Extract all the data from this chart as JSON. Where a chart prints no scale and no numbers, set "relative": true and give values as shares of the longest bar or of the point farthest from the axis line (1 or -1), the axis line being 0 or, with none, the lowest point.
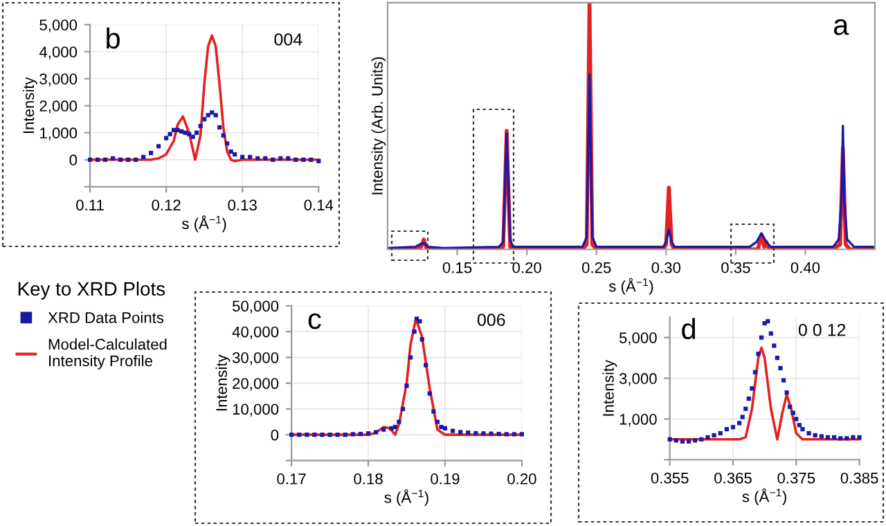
{
  "chart_data": [
    {
      "type": "line",
      "relative": true,
      "ylabel": "Intensity (Arb. Units)",
      "xlabel": "s (Å$^{−1}$)",
      "annotations": [
        "a"
      ],
      "xlim": [
        0.1,
        0.45
      ],
      "xticks": [
        0.15,
        {
          "value": 0.2,
          "label": "0.20"
        },
        0.25,
        {
          "value": 0.3,
          "label": "0.30"
        },
        0.35,
        {
          "value": 0.4,
          "label": "0.40"
        }
      ],
      "grid": false,
      "series": [
        {
          "color": "#1a1aa6",
          "x": [
            0.1,
            0.12,
            0.123,
            0.126,
            0.129,
            0.14,
            0.18,
            0.183,
            0.1855,
            0.188,
            0.19,
            0.24,
            0.243,
            0.245,
            0.247,
            0.25,
            0.298,
            0.3,
            0.302,
            0.304,
            0.306,
            0.36,
            0.365,
            0.3685,
            0.372,
            0.375,
            0.42,
            0.424,
            0.426,
            0.427,
            0.428,
            0.43,
            0.435,
            0.45
          ],
          "values": [
            0.005,
            0.01,
            0.02,
            0.025,
            0.01,
            0.005,
            0.01,
            0.03,
            0.47,
            0.04,
            0.01,
            0.01,
            0.05,
            0.71,
            0.05,
            0.01,
            0.01,
            0.03,
            0.08,
            0.03,
            0.01,
            0.01,
            0.03,
            0.065,
            0.03,
            0.01,
            0.01,
            0.04,
            0.2,
            0.5,
            0.2,
            0.04,
            0.01,
            0.01
          ]
        },
        {
          "color": "#e62020",
          "x": [
            0.1,
            0.12,
            0.124,
            0.126,
            0.128,
            0.13,
            0.18,
            0.183,
            0.1855,
            0.188,
            0.19,
            0.24,
            0.243,
            0.245,
            0.247,
            0.25,
            0.298,
            0.3,
            0.302,
            0.304,
            0.306,
            0.366,
            0.3685,
            0.3705,
            0.372,
            0.374,
            0.42,
            0.425,
            0.427,
            0.429,
            0.432,
            0.45
          ],
          "values": [
            0,
            0,
            0.01,
            0.04,
            0.005,
            0,
            0,
            0.01,
            0.48,
            0.01,
            0,
            0,
            0.02,
            1.0,
            0.02,
            0,
            0,
            0.02,
            0.25,
            0.02,
            0,
            0,
            0.06,
            0.01,
            0.03,
            0,
            0,
            0.02,
            0.41,
            0.02,
            0,
            0
          ]
        }
      ]
    },
    {
      "type": "line",
      "ylabel": "Intensity",
      "xlabel": "s (Å$^{−1}$)",
      "annotations": [
        "b",
        "004"
      ],
      "xlim": [
        0.11,
        0.14
      ],
      "xticks": [
        0.11,
        0.12,
        0.13,
        0.14
      ],
      "ylim": [
        -1000,
        5000
      ],
      "yticks": [
        {
          "value": -1000,
          "label": null
        },
        0,
        {
          "value": 1000,
          "label": "1,000"
        },
        {
          "value": 2000,
          "label": "2,000"
        },
        {
          "value": 3000,
          "label": "3,000"
        },
        {
          "value": 4000,
          "label": "4,000"
        },
        {
          "value": 5000,
          "label": "5,000"
        }
      ],
      "grid": true,
      "legend": "bottom left",
      "legend_title": "Key to XRD Plots",
      "series": [
        {
          "type": "scatter",
          "name": "XRD Data Points",
          "color": "#1a1aa6",
          "marker": "square",
          "x": [
            0.11,
            0.111,
            0.112,
            0.113,
            0.114,
            0.115,
            0.116,
            0.117,
            0.118,
            0.119,
            0.12,
            0.1205,
            0.121,
            0.1215,
            0.122,
            0.1225,
            0.123,
            0.1235,
            0.124,
            0.1245,
            0.125,
            0.1255,
            0.126,
            0.1265,
            0.127,
            0.1275,
            0.128,
            0.1285,
            0.129,
            0.13,
            0.131,
            0.132,
            0.133,
            0.134,
            0.135,
            0.136,
            0.137,
            0.138,
            0.139,
            0.14
          ],
          "values": [
            0,
            0,
            0,
            50,
            0,
            0,
            0,
            100,
            250,
            500,
            800,
            950,
            1100,
            1100,
            1050,
            1000,
            950,
            850,
            1000,
            1250,
            1500,
            1650,
            1750,
            1650,
            1200,
            900,
            600,
            300,
            200,
            100,
            100,
            50,
            50,
            0,
            50,
            50,
            0,
            0,
            0,
            -50
          ]
        },
        {
          "name": "Model-Calculated\nIntensity Profile",
          "color": "#e62020",
          "x": [
            0.11,
            0.118,
            0.119,
            0.12,
            0.121,
            0.1215,
            0.1222,
            0.123,
            0.1238,
            0.1245,
            0.125,
            0.1255,
            0.126,
            0.1265,
            0.127,
            0.1275,
            0.128,
            0.1285,
            0.129,
            0.13,
            0.14
          ],
          "values": [
            0,
            0,
            50,
            200,
            700,
            1300,
            1600,
            1000,
            0,
            900,
            2800,
            4200,
            4600,
            4200,
            2800,
            1200,
            300,
            0,
            -50,
            0,
            0
          ]
        }
      ]
    },
    {
      "type": "line",
      "ylabel": "Intensity",
      "xlabel": "s (Å$^{−1}$)",
      "annotations": [
        "c",
        "006"
      ],
      "xlim": [
        0.17,
        0.2
      ],
      "xticks": [
        0.17,
        0.18,
        0.19,
        {
          "value": 0.2,
          "label": "0.20"
        }
      ],
      "ylim": [
        -10000,
        50000
      ],
      "yticks": [
        {
          "value": -10000,
          "label": null
        },
        0,
        {
          "value": 10000,
          "label": "10,000"
        },
        {
          "value": 20000,
          "label": "20,000"
        },
        {
          "value": 30000,
          "label": "30,000"
        },
        {
          "value": 40000,
          "label": "40,000"
        },
        {
          "value": 50000,
          "label": "50,000"
        }
      ],
      "grid": true,
      "series": [
        {
          "type": "scatter",
          "color": "#1a1aa6",
          "marker": "square",
          "x": [
            0.17,
            0.171,
            0.172,
            0.173,
            0.174,
            0.175,
            0.176,
            0.177,
            0.178,
            0.179,
            0.18,
            0.181,
            0.182,
            0.183,
            0.1835,
            0.184,
            0.1845,
            0.185,
            0.1855,
            0.186,
            0.1863,
            0.1867,
            0.187,
            0.1875,
            0.188,
            0.1885,
            0.189,
            0.1895,
            0.19,
            0.191,
            0.192,
            0.193,
            0.194,
            0.195,
            0.196,
            0.197,
            0.198,
            0.199,
            0.2
          ],
          "values": [
            0,
            0,
            0,
            0,
            0,
            0,
            0,
            0,
            200,
            300,
            500,
            1000,
            2000,
            2500,
            3000,
            5000,
            10000,
            19000,
            30000,
            40000,
            45000,
            44000,
            37000,
            27000,
            16000,
            9000,
            5000,
            3000,
            2500,
            1500,
            1000,
            800,
            600,
            500,
            400,
            300,
            200,
            200,
            200
          ]
        },
        {
          "color": "#e62020",
          "x": [
            0.17,
            0.18,
            0.181,
            0.182,
            0.1828,
            0.1835,
            0.184,
            0.185,
            0.1855,
            0.1862,
            0.187,
            0.188,
            0.189,
            0.19,
            0.2
          ],
          "values": [
            0,
            0,
            800,
            3000,
            2500,
            0,
            4000,
            20000,
            35000,
            45000,
            38000,
            18000,
            2000,
            0,
            0
          ]
        }
      ]
    },
    {
      "type": "line",
      "ylabel": "Intensity",
      "xlabel": "s (Å$^{−1}$)",
      "annotations": [
        "d",
        "0 0 12"
      ],
      "xlim": [
        0.355,
        0.385
      ],
      "xticks": [
        0.355,
        0.365,
        0.375,
        0.385
      ],
      "ylim": [
        -1000,
        6000
      ],
      "yticks": [
        {
          "value": -1000,
          "label": null
        },
        {
          "value": 1000,
          "label": "1,000"
        },
        {
          "value": 3000,
          "label": "3,000"
        },
        {
          "value": 5000,
          "label": "5,000"
        }
      ],
      "grid": true,
      "series": [
        {
          "type": "scatter",
          "color": "#1a1aa6",
          "marker": "square",
          "x": [
            0.355,
            0.356,
            0.357,
            0.358,
            0.359,
            0.36,
            0.361,
            0.362,
            0.363,
            0.364,
            0.365,
            0.366,
            0.3665,
            0.367,
            0.3675,
            0.368,
            0.3685,
            0.369,
            0.3695,
            0.37,
            0.3705,
            0.371,
            0.3715,
            0.372,
            0.3725,
            0.373,
            0.3735,
            0.374,
            0.3745,
            0.375,
            0.3755,
            0.376,
            0.377,
            0.378,
            0.379,
            0.38,
            0.381,
            0.382,
            0.383,
            0.384,
            0.385
          ],
          "values": [
            0,
            -50,
            -100,
            -100,
            -50,
            0,
            100,
            200,
            300,
            500,
            600,
            800,
            1100,
            1500,
            2000,
            2500,
            3300,
            4200,
            5000,
            5700,
            5800,
            5200,
            4600,
            4000,
            3500,
            2900,
            2300,
            1600,
            1300,
            1000,
            700,
            500,
            300,
            200,
            150,
            100,
            100,
            50,
            50,
            100,
            100
          ]
        },
        {
          "color": "#e62020",
          "x": [
            0.355,
            0.358,
            0.362,
            0.366,
            0.367,
            0.368,
            0.369,
            0.3695,
            0.37,
            0.371,
            0.372,
            0.3728,
            0.3735,
            0.3742,
            0.375,
            0.376,
            0.385
          ],
          "values": [
            0,
            0,
            0,
            0,
            100,
            1500,
            4000,
            4500,
            4000,
            1500,
            0,
            1300,
            2200,
            1500,
            300,
            0,
            0
          ]
        }
      ]
    }
  ]
}
